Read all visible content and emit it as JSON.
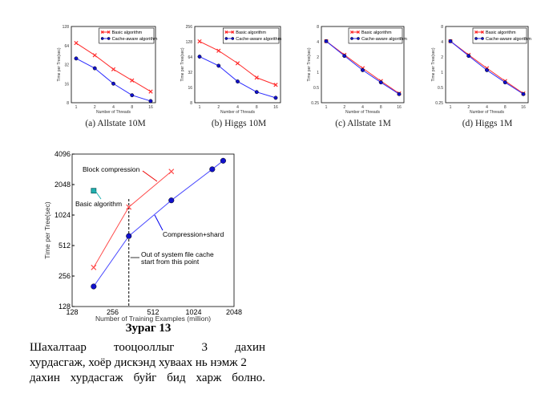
{
  "small_charts_caption_prefix": "",
  "chart_data": [
    {
      "type": "line",
      "caption": "(a) Allstate 10M",
      "xlabel": "Number of Threads",
      "ylabel": "Time per Tree(sec)",
      "x": [
        1,
        2,
        4,
        8,
        16
      ],
      "xticks": [
        "1",
        "2",
        "4",
        "8",
        "16"
      ],
      "yticks": [
        "8",
        "16",
        "32",
        "64",
        "128"
      ],
      "ylim": [
        8,
        128
      ],
      "legend": "top-right",
      "series": [
        {
          "name": "Basic algorithm",
          "color": "#ff2a2a",
          "marker": "x",
          "values": [
            70,
            45,
            27,
            18,
            12
          ]
        },
        {
          "name": "Cache-aware algorithm",
          "color": "#2a2aff",
          "marker": "o",
          "values": [
            40,
            28,
            16,
            10.5,
            8.5
          ]
        }
      ]
    },
    {
      "type": "line",
      "caption": "(b) Higgs 10M",
      "xlabel": "Number of Threads",
      "ylabel": "Time per Tree(sec)",
      "x": [
        1,
        2,
        4,
        8,
        16
      ],
      "xticks": [
        "1",
        "2",
        "4",
        "8",
        "16"
      ],
      "yticks": [
        "8",
        "16",
        "32",
        "64",
        "128",
        "256"
      ],
      "ylim": [
        8,
        256
      ],
      "legend": "top-right",
      "series": [
        {
          "name": "Basic algorithm",
          "color": "#ff2a2a",
          "marker": "x",
          "values": [
            130,
            85,
            48,
            25,
            18
          ]
        },
        {
          "name": "Cache-aware algorithm",
          "color": "#2a2aff",
          "marker": "o",
          "values": [
            65,
            43,
            21,
            13,
            10
          ]
        }
      ]
    },
    {
      "type": "line",
      "caption": "(c) Allstate 1M",
      "xlabel": "Number of Threads",
      "ylabel": "Time per Tree(sec)",
      "x": [
        1,
        2,
        4,
        8,
        16
      ],
      "xticks": [
        "1",
        "2",
        "4",
        "8",
        "16"
      ],
      "yticks": [
        "0.25",
        "0.5",
        "1",
        "2",
        "4",
        "8"
      ],
      "ylim": [
        0.25,
        8
      ],
      "legend": "top-right",
      "series": [
        {
          "name": "Basic algorithm",
          "color": "#ff2a2a",
          "marker": "x",
          "values": [
            4.1,
            2.2,
            1.2,
            0.67,
            0.38
          ]
        },
        {
          "name": "Cache-aware algorithm",
          "color": "#2a2aff",
          "marker": "o",
          "values": [
            4.1,
            2.1,
            1.1,
            0.63,
            0.37
          ]
        }
      ]
    },
    {
      "type": "line",
      "caption": "(d) Higgs 1M",
      "xlabel": "Number of Threads",
      "ylabel": "Time per Tree(sec)",
      "x": [
        1,
        2,
        4,
        8,
        16
      ],
      "xticks": [
        "1",
        "2",
        "4",
        "8",
        "16"
      ],
      "yticks": [
        "0.25",
        "0.5",
        "1",
        "2",
        "4",
        "8"
      ],
      "ylim": [
        0.25,
        8
      ],
      "legend": "top-right",
      "series": [
        {
          "name": "Basic algorithm",
          "color": "#ff2a2a",
          "marker": "x",
          "values": [
            4.1,
            2.2,
            1.2,
            0.67,
            0.38
          ]
        },
        {
          "name": "Cache-aware algorithm",
          "color": "#2a2aff",
          "marker": "o",
          "values": [
            4.1,
            2.1,
            1.1,
            0.63,
            0.37
          ]
        }
      ]
    },
    {
      "type": "line",
      "xlabel": "Number of Training Examples (million)",
      "ylabel": "Time per Tree(sec)",
      "xlim": [
        128,
        2048
      ],
      "ylim": [
        128,
        4096
      ],
      "xticks": [
        "128",
        "256",
        "512",
        "1024",
        "2048"
      ],
      "yticks": [
        "128",
        "256",
        "512",
        "1024",
        "2048",
        "4096"
      ],
      "series": [
        {
          "name": "Block compression",
          "color": "#ff4a4a",
          "marker": "x",
          "x": [
            185,
            338,
            700
          ],
          "values": [
            311,
            1228,
            2760
          ]
        },
        {
          "name": "Compression+shard",
          "color": "#4a4aff",
          "marker": "o",
          "x": [
            185,
            338,
            700,
            1410,
            1700
          ],
          "values": [
            202,
            635,
            1430,
            2900,
            3520
          ]
        },
        {
          "name": "Basic algorithm",
          "color": "#20b0b0",
          "marker": "s",
          "x": [
            185
          ],
          "values": [
            1780
          ]
        }
      ],
      "vline": {
        "x": 338,
        "label_line1": "Out of system file cache",
        "label_line2": "start from this point"
      },
      "annotations": {
        "block": "Block compression",
        "basic": "Basic algorithm",
        "shard": "Compression+shard"
      }
    }
  ],
  "figure_caption": "Зураг 13",
  "paragraph": [
    "Шахалтаар тооцооллыг 3 дахин",
    "хурдасгаж, хоёр дискэнд хуваах нь нэмж 2",
    "дахин хурдасгаж буйг бид харж болно."
  ]
}
